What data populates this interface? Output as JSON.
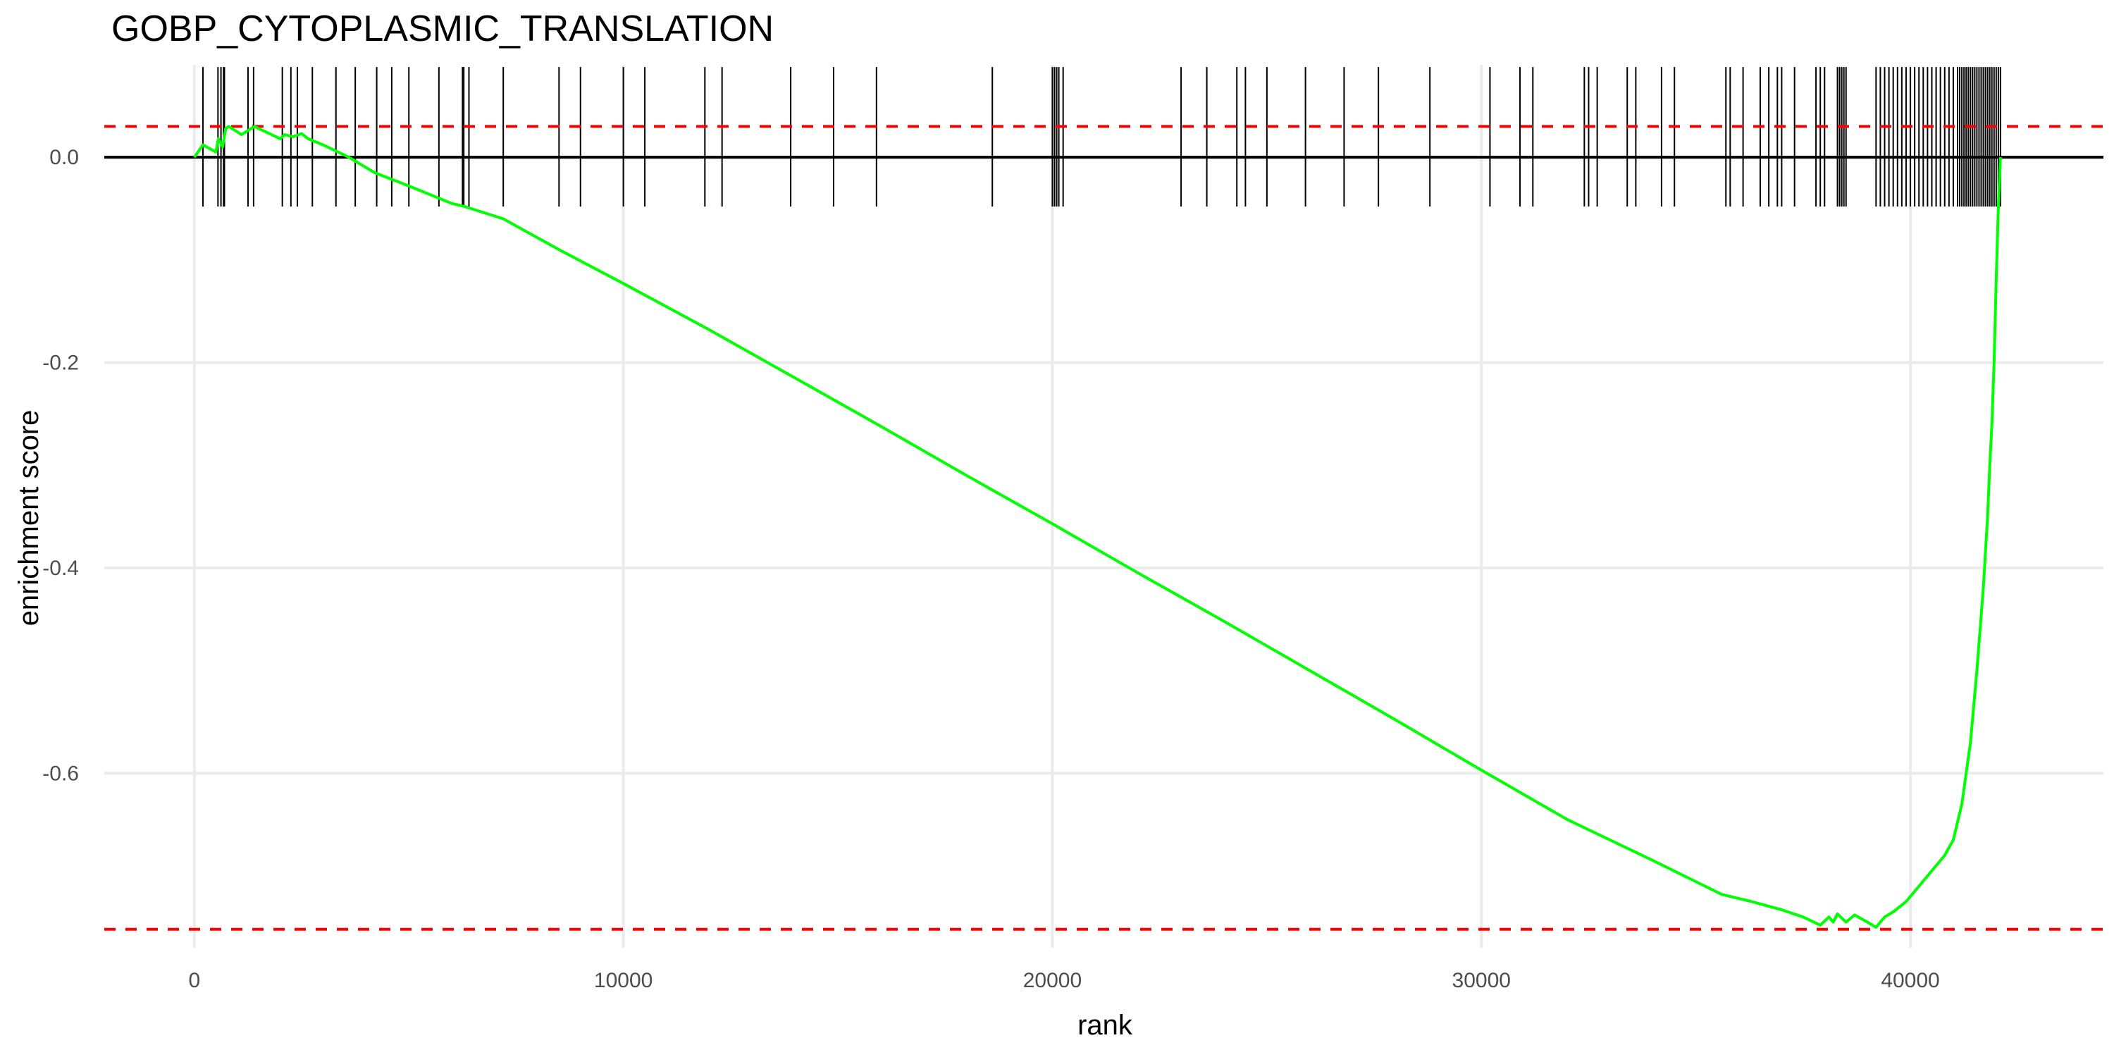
{
  "chart_data": {
    "type": "line",
    "title": "GOBP_CYTOPLASMIC_TRANSLATION",
    "xlabel": "rank",
    "ylabel": "enrichment score",
    "xlim": [
      -2100,
      44500
    ],
    "ylim": [
      -0.77,
      0.09
    ],
    "x_ticks": [
      0,
      10000,
      20000,
      30000,
      40000
    ],
    "x_tick_labels": [
      "0",
      "10000",
      "20000",
      "30000",
      "40000"
    ],
    "y_ticks": [
      0.0,
      -0.2,
      -0.4,
      -0.6
    ],
    "y_tick_labels": [
      "0.0",
      "-0.2",
      "-0.4",
      "-0.6"
    ],
    "grid": true,
    "zero_line": 0.0,
    "threshold_lines": [
      {
        "y": 0.03,
        "style": "dashed",
        "color": "#ff0000"
      },
      {
        "y": -0.752,
        "style": "dashed",
        "color": "#ff0000"
      }
    ],
    "series": [
      {
        "color": "#00ff00",
        "x": [
          0,
          200,
          500,
          560,
          660,
          730,
          800,
          1100,
          1400,
          2000,
          2100,
          2300,
          2500,
          2650,
          3000,
          3600,
          4200,
          5000,
          6000,
          6300,
          7200,
          8500,
          10000,
          12000,
          14000,
          16000,
          18000,
          20000,
          22000,
          24000,
          26000,
          28000,
          30000,
          32000,
          34000,
          35600,
          36300,
          37000,
          37500,
          37900,
          38100,
          38200,
          38300,
          38500,
          38700,
          39000,
          39200,
          39400,
          39600,
          39900,
          40200,
          40500,
          40800,
          41000,
          41200,
          41400,
          41550,
          41700,
          41800,
          41850,
          41900,
          41950,
          42000,
          42050,
          42100
        ],
        "y": [
          0.0,
          0.012,
          0.005,
          0.018,
          0.01,
          0.028,
          0.03,
          0.022,
          0.03,
          0.018,
          0.022,
          0.02,
          0.023,
          0.018,
          0.012,
          0.0,
          -0.015,
          -0.028,
          -0.045,
          -0.048,
          -0.06,
          -0.09,
          -0.123,
          -0.168,
          -0.215,
          -0.262,
          -0.31,
          -0.357,
          -0.405,
          -0.452,
          -0.5,
          -0.548,
          -0.597,
          -0.645,
          -0.685,
          -0.718,
          -0.725,
          -0.733,
          -0.74,
          -0.748,
          -0.74,
          -0.745,
          -0.737,
          -0.745,
          -0.738,
          -0.745,
          -0.75,
          -0.74,
          -0.735,
          -0.725,
          -0.71,
          -0.695,
          -0.68,
          -0.665,
          -0.63,
          -0.57,
          -0.5,
          -0.42,
          -0.35,
          -0.3,
          -0.26,
          -0.2,
          -0.12,
          -0.05,
          0.0
        ]
      }
    ],
    "hits": [
      200,
      550,
      620,
      680,
      700,
      1250,
      1380,
      2050,
      2250,
      2400,
      2750,
      3300,
      3750,
      4250,
      4600,
      5000,
      5700,
      6250,
      6280,
      6400,
      7200,
      8500,
      9000,
      10000,
      10500,
      11900,
      12300,
      13900,
      14900,
      15900,
      18600,
      20000,
      20050,
      20100,
      20150,
      20250,
      23000,
      23600,
      24300,
      24500,
      25000,
      25900,
      26800,
      27600,
      28800,
      30200,
      30900,
      31200,
      32400,
      32500,
      32700,
      33400,
      33600,
      34200,
      34500,
      35700,
      35800,
      36100,
      36500,
      36700,
      36900,
      37000,
      37300,
      37800,
      37900,
      38000,
      38300,
      38350,
      38400,
      38450,
      38500,
      39200,
      39300,
      39400,
      39500,
      39600,
      39700,
      39800,
      39900,
      40000,
      40100,
      40200,
      40300,
      40400,
      40500,
      40600,
      40700,
      40800,
      40900,
      41000,
      41100,
      41150,
      41200,
      41250,
      41300,
      41350,
      41400,
      41450,
      41500,
      41550,
      41600,
      41650,
      41700,
      41750,
      41800,
      41850,
      41900,
      41950,
      42000,
      42050,
      42100
    ]
  }
}
